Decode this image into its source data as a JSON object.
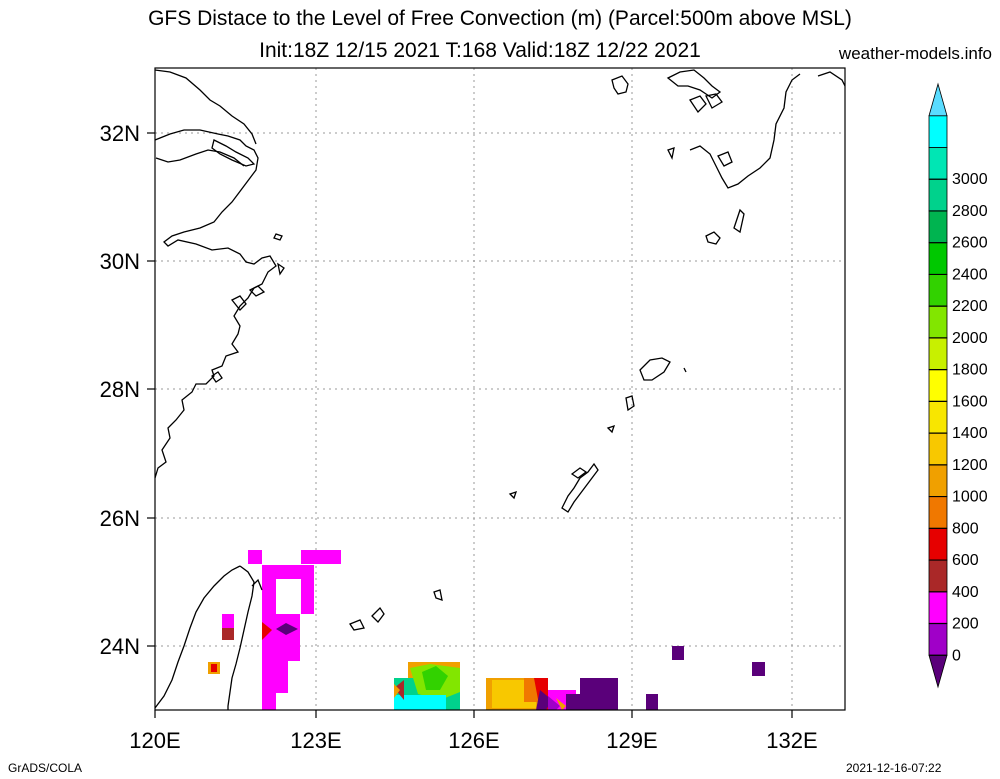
{
  "title_line1": "GFS Distace to the Level of Free Convection (m) (Parcel:500m above MSL)",
  "title_line2": "Init:18Z 12/15 2021 T:168 Valid:18Z 12/22 2021",
  "site": "weather-models.info",
  "footer_left": "GrADS/COLA",
  "footer_right": "2021-12-16-07:22",
  "map": {
    "lon_labels": [
      "120E",
      "123E",
      "126E",
      "129E",
      "132E"
    ],
    "lat_labels": [
      "24N",
      "26N",
      "28N",
      "30N",
      "32N"
    ]
  },
  "colorbar": {
    "levels": [
      "0",
      "200",
      "400",
      "600",
      "800",
      "1000",
      "1200",
      "1400",
      "1600",
      "1800",
      "2000",
      "2200",
      "2400",
      "2600",
      "2800",
      "3000"
    ],
    "colors": [
      "#5a007a",
      "#a000c8",
      "#ff00ff",
      "#aa2828",
      "#e60000",
      "#f07800",
      "#f0a000",
      "#f8c800",
      "#f8e600",
      "#ffff00",
      "#c8f000",
      "#82e600",
      "#32d200",
      "#00c800",
      "#00b450",
      "#00d28c",
      "#00e6b4",
      "#00ffff",
      "#5adcff"
    ]
  }
}
